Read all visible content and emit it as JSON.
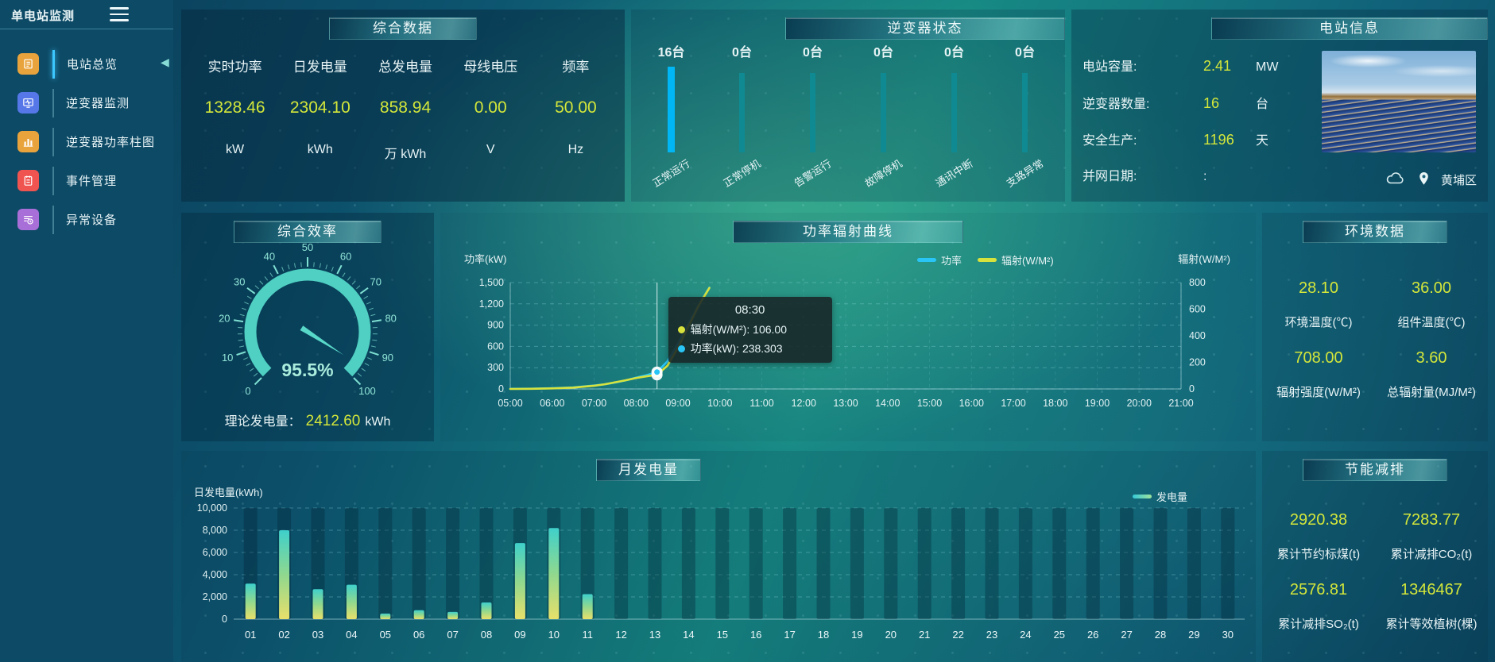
{
  "app": {
    "title": "单电站监测"
  },
  "sidebar": {
    "items": [
      {
        "label": "电站总览",
        "icon": "overview-icon",
        "tile_color": "#e8a33d",
        "active": true
      },
      {
        "label": "逆变器监测",
        "icon": "inverter-monitor-icon",
        "tile_color": "#5577e8",
        "active": false
      },
      {
        "label": "逆变器功率柱图",
        "icon": "power-bars-icon",
        "tile_color": "#e8a33d",
        "active": false
      },
      {
        "label": "事件管理",
        "icon": "event-icon",
        "tile_color": "#f05450",
        "active": false
      },
      {
        "label": "异常设备",
        "icon": "abnormal-device-icon",
        "tile_color": "#a96fd8",
        "active": false
      }
    ]
  },
  "panels": {
    "summary": {
      "title": "综合数据",
      "stats": [
        {
          "label": "实时功率",
          "value": "1328.46",
          "unit": "kW"
        },
        {
          "label": "日发电量",
          "value": "2304.10",
          "unit": "kWh"
        },
        {
          "label": "总发电量",
          "value": "858.94",
          "unit": "万 kWh"
        },
        {
          "label": "母线电压",
          "value": "0.00",
          "unit": "V"
        },
        {
          "label": "频率",
          "value": "50.00",
          "unit": "Hz"
        }
      ]
    },
    "inverter_status": {
      "title": "逆变器状态",
      "bars": [
        {
          "count": "16台",
          "label": "正常运行",
          "color": "#00b6f5"
        },
        {
          "count": "0台",
          "label": "正常停机",
          "color": "#0f8a92"
        },
        {
          "count": "0台",
          "label": "告警运行",
          "color": "#0f8a92"
        },
        {
          "count": "0台",
          "label": "故障停机",
          "color": "#0f8a92"
        },
        {
          "count": "0台",
          "label": "通讯中断",
          "color": "#0f8a92"
        },
        {
          "count": "0台",
          "label": "支路异常",
          "color": "#0f8a92"
        }
      ]
    },
    "station_info": {
      "title": "电站信息",
      "rows": [
        {
          "label": "电站容量:",
          "value": "2.41",
          "unit": "MW"
        },
        {
          "label": "逆变器数量:",
          "value": "16",
          "unit": "台"
        },
        {
          "label": "安全生产:",
          "value": "1196",
          "unit": "天"
        },
        {
          "label": "并网日期:",
          "value": ":",
          "unit": ""
        }
      ],
      "location": "黄埔区"
    },
    "environment": {
      "title": "环境数据",
      "cells": [
        {
          "value": "28.10",
          "label": "环境温度(℃)"
        },
        {
          "value": "36.00",
          "label": "组件温度(℃)"
        },
        {
          "value": "708.00",
          "label": "辐射强度(W/M²)"
        },
        {
          "value": "3.60",
          "label": "总辐射量(MJ/M²)"
        }
      ]
    },
    "saving": {
      "title": "节能减排",
      "cells": [
        {
          "value": "2920.38",
          "label": "累计节约标煤(t)"
        },
        {
          "value": "7283.77",
          "label": "累计减排CO₂(t)"
        },
        {
          "value": "2576.81",
          "label": "累计减排SO₂(t)"
        },
        {
          "value": "1346467",
          "label": "累计等效植树(棵)"
        }
      ]
    }
  },
  "chart_data": [
    {
      "type": "gauge",
      "title": "综合效率",
      "value": 95.5,
      "display_value": "95.5%",
      "min": 0,
      "max": 100,
      "tick_labels": [
        "0",
        "10",
        "20",
        "30",
        "40",
        "50",
        "60",
        "70",
        "80",
        "90",
        "100"
      ],
      "band_color": "#4fd0c2",
      "footer": {
        "label": "理论发电量：",
        "value": "2412.60",
        "unit": "kWh"
      }
    },
    {
      "type": "line",
      "title": "功率辐射曲线",
      "x": [
        5,
        5.5,
        6,
        6.5,
        7,
        7.25,
        7.5,
        7.75,
        8,
        8.25,
        8.5,
        8.75,
        9,
        9.25,
        9.5,
        9.75
      ],
      "xticks": [
        "05:00",
        "06:00",
        "07:00",
        "08:00",
        "09:00",
        "10:00",
        "11:00",
        "12:00",
        "13:00",
        "14:00",
        "15:00",
        "16:00",
        "17:00",
        "18:00",
        "19:00",
        "20:00",
        "21:00"
      ],
      "xrange": [
        5,
        21
      ],
      "series": [
        {
          "name": "功率",
          "axis": "left",
          "color": "#29c5f6",
          "values": [
            2,
            4,
            10,
            22,
            48,
            65,
            90,
            120,
            160,
            195,
            238.303,
            390,
            640,
            920,
            1190,
            1430
          ]
        },
        {
          "name": "辐射(W/M²)",
          "axis": "right",
          "color": "#d8e23c",
          "values": [
            0,
            1,
            4,
            10,
            24,
            35,
            50,
            65,
            82,
            95,
            106,
            175,
            310,
            470,
            630,
            760
          ]
        }
      ],
      "left_axis": {
        "label": "功率(kW)",
        "min": 0,
        "max": 1500,
        "ticks": [
          "1,500",
          "1,200",
          "900",
          "600",
          "300",
          "0"
        ]
      },
      "right_axis": {
        "label": "辐射(W/M²)",
        "min": 0,
        "max": 800,
        "ticks": [
          "800",
          "600",
          "400",
          "200",
          "0"
        ]
      },
      "tooltip": {
        "time": "08:30",
        "x": 8.5,
        "items": [
          {
            "series_index": 1,
            "color": "#d8e23c",
            "text": "辐射(W/M²): 106.00",
            "value": 106.0
          },
          {
            "series_index": 0,
            "color": "#29c5f6",
            "text": "功率(kW): 238.303",
            "value": 238.303
          }
        ]
      }
    },
    {
      "type": "bar",
      "title": "月发电量",
      "ylabel": "日发电量(kWh)",
      "legend": "发电量",
      "legend_swatch": "linear-gradient(90deg,#35c8d8,#9fe39b)",
      "categories": [
        "01",
        "02",
        "03",
        "04",
        "05",
        "06",
        "07",
        "08",
        "09",
        "10",
        "11",
        "12",
        "13",
        "14",
        "15",
        "16",
        "17",
        "18",
        "19",
        "20",
        "21",
        "22",
        "23",
        "24",
        "25",
        "26",
        "27",
        "28",
        "29",
        "30"
      ],
      "values": [
        3200,
        8000,
        2700,
        3100,
        500,
        800,
        650,
        1500,
        6850,
        8200,
        2250,
        0,
        0,
        0,
        0,
        0,
        0,
        0,
        0,
        0,
        0,
        0,
        0,
        0,
        0,
        0,
        0,
        0,
        0,
        0
      ],
      "ylim": [
        0,
        10000
      ],
      "yticks": [
        "10,000",
        "8,000",
        "6,000",
        "4,000",
        "2,000",
        "0"
      ],
      "bar_gradient": [
        "#3fd0cb",
        "#8fd88f",
        "#e8e06a"
      ]
    }
  ]
}
